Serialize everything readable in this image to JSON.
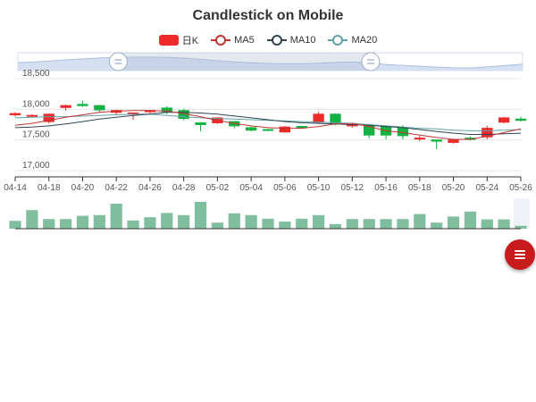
{
  "chart_data": {
    "type": "candlestick",
    "title": "Candlestick on Mobile",
    "colors": {
      "up": "#ec2a2a",
      "down": "#14b143",
      "ma5": "#c23531",
      "ma10": "#2f4554",
      "ma20": "#61a0a8",
      "volume": "#7fbe9e"
    },
    "legend": [
      {
        "name": "日K",
        "kind": "bar",
        "color": "#ec2a2a"
      },
      {
        "name": "MA5",
        "kind": "line",
        "color": "#c23531"
      },
      {
        "name": "MA10",
        "kind": "line",
        "color": "#2f4554"
      },
      {
        "name": "MA20",
        "kind": "line",
        "color": "#61a0a8"
      }
    ],
    "y_ticks": [
      "17,000",
      "17,500",
      "18,000",
      "18,500"
    ],
    "y_tick_values": [
      17000,
      17500,
      18000,
      18500
    ],
    "ylim": [
      17000,
      18500
    ],
    "x_tick_labels": [
      "04-14",
      "04-18",
      "04-20",
      "04-22",
      "04-26",
      "04-28",
      "05-02",
      "05-04",
      "05-06",
      "05-10",
      "05-12",
      "05-16",
      "05-18",
      "05-20",
      "05-24",
      "05-26"
    ],
    "dates": [
      "04-14",
      "04-15",
      "04-18",
      "04-19",
      "04-20",
      "04-21",
      "04-22",
      "04-25",
      "04-26",
      "04-27",
      "04-28",
      "04-29",
      "05-02",
      "05-03",
      "05-04",
      "05-05",
      "05-06",
      "05-09",
      "05-10",
      "05-11",
      "05-12",
      "05-13",
      "05-16",
      "05-17",
      "05-18",
      "05-19",
      "05-20",
      "05-23",
      "05-24",
      "05-25",
      "05-26"
    ],
    "ohlc": [
      [
        17910,
        17930,
        17880,
        17950
      ],
      [
        17890,
        17900,
        17870,
        17920
      ],
      [
        17800,
        17920,
        17770,
        17930
      ],
      [
        18030,
        18060,
        17980,
        18080
      ],
      [
        18080,
        18060,
        18040,
        18140
      ],
      [
        18060,
        17990,
        17940,
        18070
      ],
      [
        17950,
        17980,
        17920,
        17990
      ],
      [
        17920,
        17940,
        17830,
        17950
      ],
      [
        17960,
        17980,
        17920,
        17990
      ],
      [
        18020,
        17960,
        17920,
        18050
      ],
      [
        17980,
        17850,
        17820,
        18010
      ],
      [
        17780,
        17750,
        17640,
        17790
      ],
      [
        17780,
        17860,
        17760,
        17870
      ],
      [
        17800,
        17730,
        17690,
        17810
      ],
      [
        17700,
        17660,
        17640,
        17720
      ],
      [
        17670,
        17660,
        17640,
        17680
      ],
      [
        17630,
        17710,
        17620,
        17730
      ],
      [
        17720,
        17700,
        17680,
        17730
      ],
      [
        17790,
        17920,
        17770,
        17960
      ],
      [
        17920,
        17760,
        17740,
        17930
      ],
      [
        17730,
        17750,
        17700,
        17780
      ],
      [
        17730,
        17580,
        17530,
        17730
      ],
      [
        17720,
        17580,
        17510,
        17730
      ],
      [
        17700,
        17570,
        17510,
        17740
      ],
      [
        17520,
        17530,
        17480,
        17570
      ],
      [
        17500,
        17480,
        17350,
        17510
      ],
      [
        17460,
        17500,
        17440,
        17520
      ],
      [
        17530,
        17510,
        17490,
        17560
      ],
      [
        17550,
        17690,
        17510,
        17730
      ],
      [
        17790,
        17860,
        17770,
        17880
      ],
      [
        17840,
        17820,
        17800,
        17880
      ]
    ],
    "ma5": [
      17740,
      17770,
      17820,
      17870,
      17910,
      17950,
      17970,
      17980,
      17980,
      17970,
      17930,
      17880,
      17820,
      17770,
      17730,
      17700,
      17690,
      17690,
      17720,
      17760,
      17770,
      17720,
      17650,
      17620,
      17580,
      17540,
      17510,
      17510,
      17560,
      17620,
      17680
    ],
    "ma10": [
      17700,
      17710,
      17730,
      17760,
      17800,
      17840,
      17870,
      17900,
      17920,
      17950,
      17950,
      17940,
      17920,
      17890,
      17860,
      17830,
      17800,
      17780,
      17770,
      17760,
      17750,
      17740,
      17720,
      17700,
      17670,
      17640,
      17610,
      17590,
      17590,
      17600,
      17610
    ],
    "ma20": [
      17860,
      17870,
      17880,
      17880,
      17890,
      17900,
      17910,
      17920,
      17920,
      17900,
      17880,
      17860,
      17850,
      17840,
      17830,
      17820,
      17810,
      17800,
      17790,
      17780,
      17770,
      17750,
      17730,
      17710,
      17690,
      17680,
      17660,
      17650,
      17650,
      17660,
      17670
    ],
    "volume": [
      22,
      52,
      27,
      27,
      36,
      38,
      70,
      23,
      32,
      44,
      38,
      75,
      17,
      43,
      38,
      28,
      20,
      28,
      38,
      13,
      27,
      27,
      27,
      27,
      41,
      17,
      34,
      48,
      26,
      26,
      8
    ],
    "dataZoom": {
      "start": 30,
      "end": 100
    }
  },
  "controls": {
    "menu_icon": "menu-icon"
  }
}
